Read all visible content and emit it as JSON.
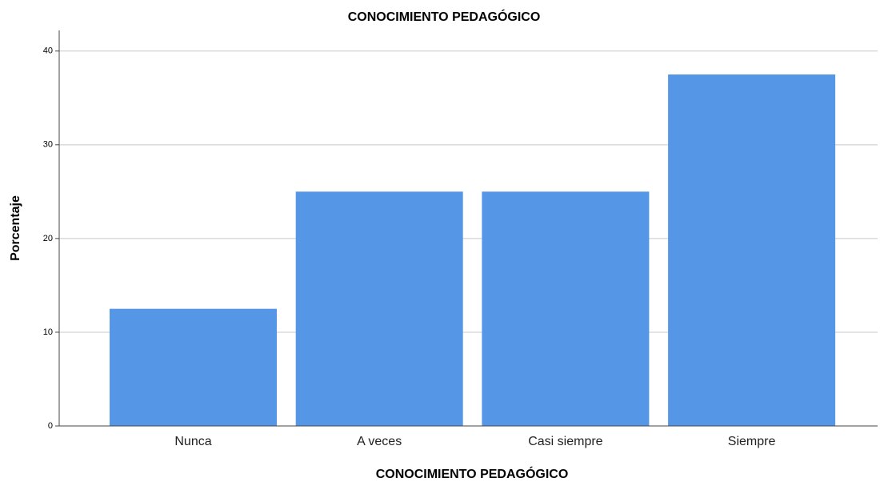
{
  "chart_data": {
    "type": "bar",
    "title": "CONOCIMIENTO PEDAGÓGICO",
    "x_label": "CONOCIMIENTO PEDAGÓGICO",
    "y_label": "Porcentaje",
    "categories": [
      "Nunca",
      "A veces",
      "Casi siempre",
      "Siempre"
    ],
    "values": [
      12.5,
      25,
      25,
      37.5
    ],
    "color": "#5596e6",
    "ylim": [
      0,
      42.2
    ],
    "yticks": [
      0,
      10,
      20,
      30,
      40
    ],
    "grid": true
  }
}
